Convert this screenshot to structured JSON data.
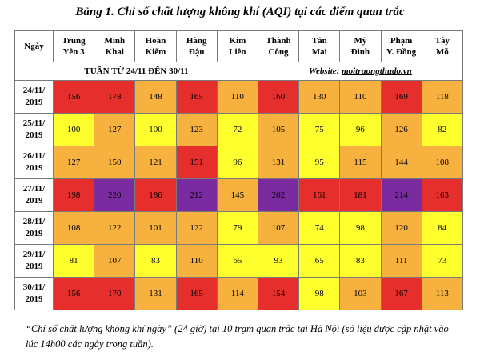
{
  "title": "Bảng 1. Chỉ số chất lượng không khí (AQI) tại các điểm quan trắc",
  "header": {
    "day_label": "Ngày",
    "stations": [
      [
        "Trung",
        "Yên 3"
      ],
      [
        "Minh",
        "Khai"
      ],
      [
        "Hoàn",
        "Kiếm"
      ],
      [
        "Hàng",
        "Đậu"
      ],
      [
        "Kim",
        "Liên"
      ],
      [
        "Thành",
        "Công"
      ],
      [
        "Tân",
        "Mai"
      ],
      [
        "Mỹ",
        "Đình"
      ],
      [
        "Phạm",
        "V. Đồng"
      ],
      [
        "Tây",
        "Mỗ"
      ]
    ]
  },
  "week_label": "TUẦN TỪ 24/11 ĐẾN 30/11",
  "website_label": "Website: ",
  "website_url": "moitruongthudo.vn",
  "colors": {
    "good": "#ffff2e",
    "moderate": "#f7b13f",
    "unhealthy": "#e62e2c",
    "very_unhealthy": "#7a2ba0",
    "border": "#7a7a7a"
  },
  "rows": [
    {
      "date": [
        "24/11/",
        "2019"
      ],
      "values": [
        156,
        178,
        148,
        165,
        110,
        160,
        130,
        110,
        169,
        118
      ]
    },
    {
      "date": [
        "25/11/",
        "2019"
      ],
      "values": [
        100,
        127,
        100,
        123,
        72,
        105,
        75,
        96,
        126,
        82
      ]
    },
    {
      "date": [
        "26/11/",
        "2019"
      ],
      "values": [
        127,
        150,
        121,
        151,
        96,
        131,
        95,
        115,
        144,
        108
      ]
    },
    {
      "date": [
        "27/11/",
        "2019"
      ],
      "values": [
        198,
        220,
        186,
        212,
        145,
        202,
        161,
        181,
        214,
        163
      ]
    },
    {
      "date": [
        "28/11/",
        "2019"
      ],
      "values": [
        108,
        122,
        101,
        122,
        79,
        107,
        74,
        98,
        120,
        84
      ]
    },
    {
      "date": [
        "29/11/",
        "2019"
      ],
      "values": [
        81,
        107,
        83,
        110,
        65,
        93,
        65,
        83,
        111,
        73
      ]
    },
    {
      "date": [
        "30/11/",
        "2019"
      ],
      "values": [
        156,
        170,
        131,
        165,
        114,
        154,
        98,
        103,
        167,
        113
      ]
    }
  ],
  "note": "“Chỉ số chất lượng không khí ngày” (24 giờ) tại 10 trạm quan trắc tại Hà Nội (số liệu được cập nhật vào lúc 14h00 các ngày trong tuần)."
}
